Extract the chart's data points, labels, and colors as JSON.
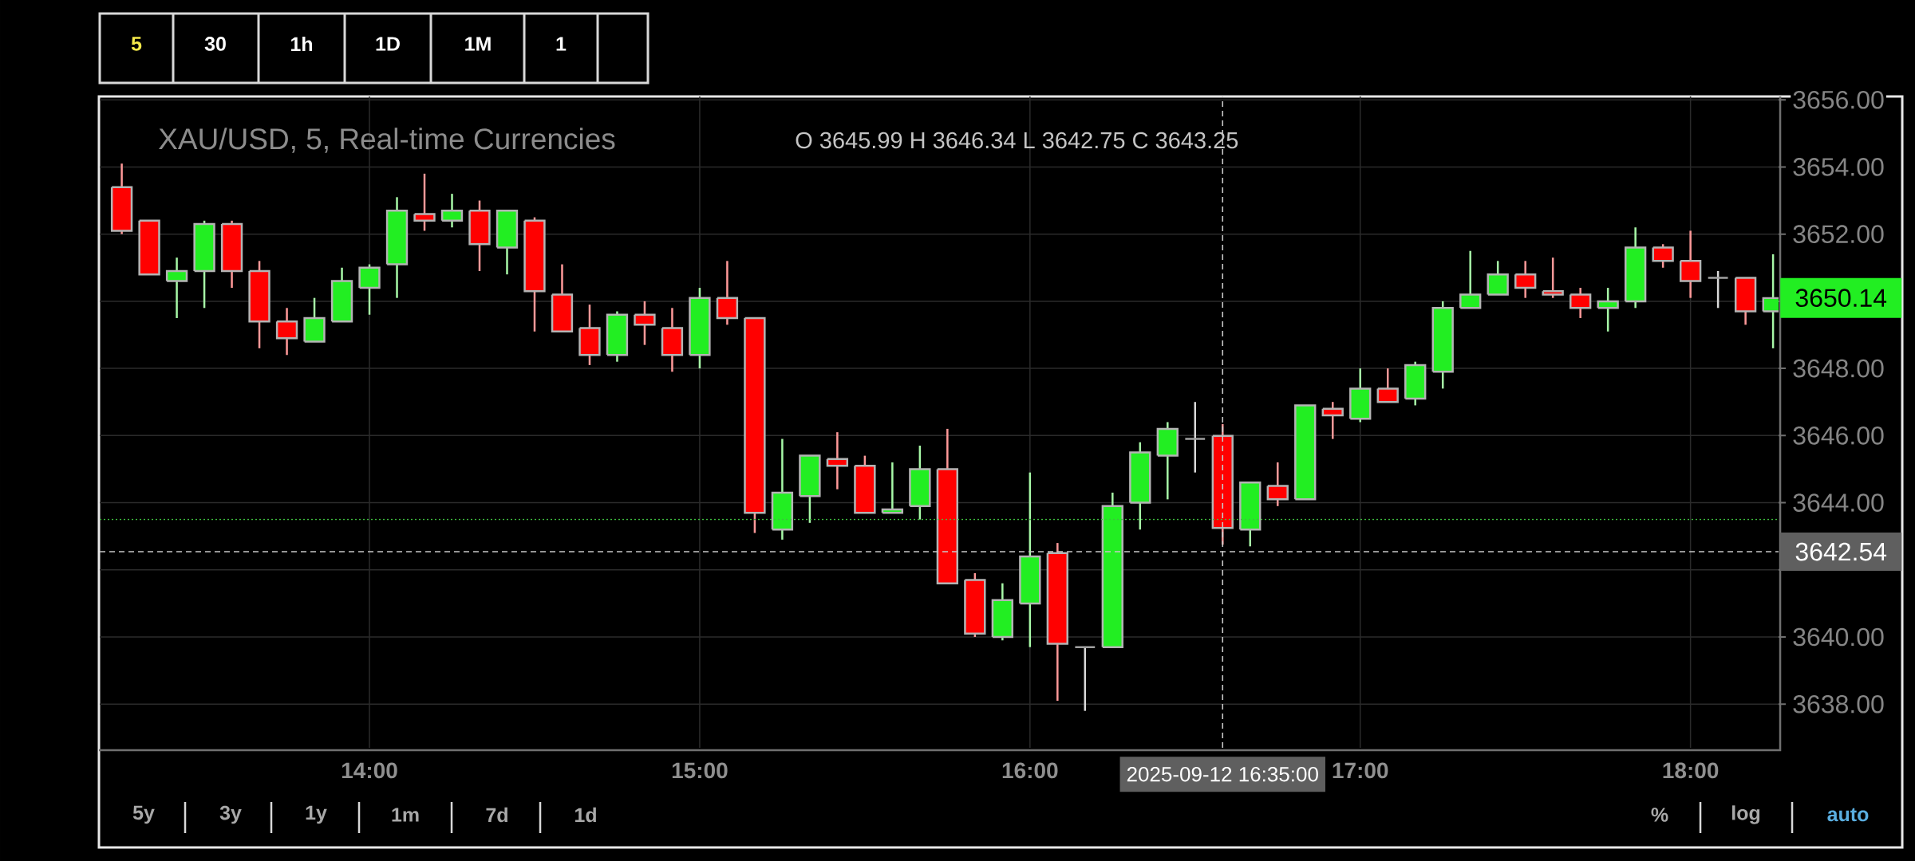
{
  "chart_data": {
    "type": "candlestick",
    "title": "XAU/USD, 5, Real-time Currencies",
    "subtitle": "O 3645.99 H 3646.34 L 3642.75 C 3643.25",
    "x": [
      "2025-09-12T13:15",
      "2025-09-12T13:20",
      "2025-09-12T13:25",
      "2025-09-12T13:30",
      "2025-09-12T13:35",
      "2025-09-12T13:40",
      "2025-09-12T13:45",
      "2025-09-12T13:50",
      "2025-09-12T13:55",
      "2025-09-12T14:00",
      "2025-09-12T14:05",
      "2025-09-12T14:10",
      "2025-09-12T14:15",
      "2025-09-12T14:20",
      "2025-09-12T14:25",
      "2025-09-12T14:30",
      "2025-09-12T14:35",
      "2025-09-12T14:40",
      "2025-09-12T14:45",
      "2025-09-12T14:50",
      "2025-09-12T14:55",
      "2025-09-12T15:00",
      "2025-09-12T15:05",
      "2025-09-12T15:10",
      "2025-09-12T15:15",
      "2025-09-12T15:20",
      "2025-09-12T15:25",
      "2025-09-12T15:30",
      "2025-09-12T15:35",
      "2025-09-12T15:40",
      "2025-09-12T15:45",
      "2025-09-12T15:50",
      "2025-09-12T15:55",
      "2025-09-12T16:00",
      "2025-09-12T16:05",
      "2025-09-12T16:10",
      "2025-09-12T16:15",
      "2025-09-12T16:20",
      "2025-09-12T16:25",
      "2025-09-12T16:30",
      "2025-09-12T16:35",
      "2025-09-12T16:40",
      "2025-09-12T16:45",
      "2025-09-12T16:50",
      "2025-09-12T16:55",
      "2025-09-12T17:00",
      "2025-09-12T17:05",
      "2025-09-12T17:10",
      "2025-09-12T17:15",
      "2025-09-12T17:20",
      "2025-09-12T17:25",
      "2025-09-12T17:30",
      "2025-09-12T17:35",
      "2025-09-12T17:40",
      "2025-09-12T17:45",
      "2025-09-12T17:50",
      "2025-09-12T17:55",
      "2025-09-12T18:00",
      "2025-09-12T18:05",
      "2025-09-12T18:10",
      "2025-09-12T18:15"
    ],
    "ohlc": [
      [
        3653.4,
        3654.1,
        3652.0,
        3652.1
      ],
      [
        3652.4,
        3652.4,
        3650.8,
        3650.8
      ],
      [
        3650.6,
        3651.3,
        3649.5,
        3650.9
      ],
      [
        3650.9,
        3652.4,
        3649.8,
        3652.3
      ],
      [
        3652.3,
        3652.4,
        3650.4,
        3650.9
      ],
      [
        3650.9,
        3651.2,
        3648.6,
        3649.4
      ],
      [
        3649.4,
        3649.8,
        3648.4,
        3648.9
      ],
      [
        3648.8,
        3650.1,
        3648.8,
        3649.5
      ],
      [
        3649.4,
        3651.0,
        3649.4,
        3650.6
      ],
      [
        3650.4,
        3651.1,
        3649.6,
        3651.0
      ],
      [
        3651.1,
        3653.1,
        3650.1,
        3652.7
      ],
      [
        3652.6,
        3653.8,
        3652.1,
        3652.4
      ],
      [
        3652.4,
        3653.2,
        3652.2,
        3652.7
      ],
      [
        3652.7,
        3653.0,
        3650.9,
        3651.7
      ],
      [
        3651.6,
        3652.7,
        3650.8,
        3652.7
      ],
      [
        3652.4,
        3652.5,
        3649.1,
        3650.3
      ],
      [
        3650.2,
        3651.1,
        3649.1,
        3649.1
      ],
      [
        3649.2,
        3649.9,
        3648.1,
        3648.4
      ],
      [
        3648.4,
        3649.7,
        3648.2,
        3649.6
      ],
      [
        3649.6,
        3650.0,
        3648.7,
        3649.3
      ],
      [
        3649.2,
        3649.8,
        3647.9,
        3648.4
      ],
      [
        3648.4,
        3650.4,
        3648.0,
        3650.1
      ],
      [
        3650.1,
        3651.2,
        3649.3,
        3649.5
      ],
      [
        3649.5,
        3649.5,
        3643.1,
        3643.7
      ],
      [
        3643.2,
        3645.9,
        3642.9,
        3644.3
      ],
      [
        3644.2,
        3645.4,
        3643.4,
        3645.4
      ],
      [
        3645.3,
        3646.1,
        3644.4,
        3645.1
      ],
      [
        3645.1,
        3645.4,
        3643.7,
        3643.7
      ],
      [
        3643.7,
        3645.2,
        3643.7,
        3643.8
      ],
      [
        3643.9,
        3645.7,
        3643.5,
        3645.0
      ],
      [
        3645.0,
        3646.2,
        3641.6,
        3641.6
      ],
      [
        3641.7,
        3641.9,
        3640.0,
        3640.1
      ],
      [
        3640.0,
        3641.6,
        3639.9,
        3641.1
      ],
      [
        3641.0,
        3644.9,
        3639.7,
        3642.4
      ],
      [
        3642.5,
        3642.8,
        3638.1,
        3639.8
      ],
      [
        3639.7,
        3639.7,
        3637.8,
        3639.7
      ],
      [
        3639.7,
        3644.3,
        3639.7,
        3643.9
      ],
      [
        3644.0,
        3645.8,
        3643.2,
        3645.5
      ],
      [
        3645.4,
        3646.4,
        3644.1,
        3646.2
      ],
      [
        3645.9,
        3647.0,
        3644.9,
        3645.9
      ],
      [
        3645.99,
        3646.34,
        3642.75,
        3643.25
      ],
      [
        3643.2,
        3644.6,
        3642.7,
        3644.6
      ],
      [
        3644.5,
        3645.2,
        3643.9,
        3644.1
      ],
      [
        3644.1,
        3646.9,
        3644.1,
        3646.9
      ],
      [
        3646.8,
        3647.0,
        3645.9,
        3646.6
      ],
      [
        3646.5,
        3648.0,
        3646.4,
        3647.4
      ],
      [
        3647.4,
        3648.0,
        3647.0,
        3647.0
      ],
      [
        3647.1,
        3648.2,
        3646.9,
        3648.1
      ],
      [
        3647.9,
        3650.0,
        3647.4,
        3649.8
      ],
      [
        3649.8,
        3651.5,
        3649.8,
        3650.2
      ],
      [
        3650.2,
        3651.2,
        3650.2,
        3650.8
      ],
      [
        3650.8,
        3651.2,
        3650.1,
        3650.4
      ],
      [
        3650.3,
        3651.3,
        3650.1,
        3650.2
      ],
      [
        3650.2,
        3650.4,
        3649.5,
        3649.8
      ],
      [
        3649.8,
        3650.4,
        3649.1,
        3650.0
      ],
      [
        3650.0,
        3652.2,
        3649.8,
        3651.6
      ],
      [
        3651.6,
        3651.7,
        3651.0,
        3651.2
      ],
      [
        3651.2,
        3652.1,
        3650.1,
        3650.6
      ],
      [
        3650.7,
        3650.9,
        3649.8,
        3650.7
      ],
      [
        3650.7,
        3650.7,
        3649.3,
        3649.7
      ],
      [
        3649.7,
        3651.4,
        3648.6,
        3650.1
      ]
    ],
    "colors": [
      "#ff0000",
      "#ff0000",
      "#22ee22",
      "#22ee22",
      "#ff0000",
      "#ff0000",
      "#ff0000",
      "#22ee22",
      "#22ee22",
      "#22ee22",
      "#22ee22",
      "#ff0000",
      "#22ee22",
      "#ff0000",
      "#22ee22",
      "#ff0000",
      "#ff0000",
      "#ff0000",
      "#22ee22",
      "#ff0000",
      "#ff0000",
      "#22ee22",
      "#ff0000",
      "#ff0000",
      "#22ee22",
      "#22ee22",
      "#ff0000",
      "#ff0000",
      "#22ee22",
      "#22ee22",
      "#ff0000",
      "#ff0000",
      "#22ee22",
      "#22ee22",
      "#ff0000",
      "#a0a0a0",
      "#22ee22",
      "#22ee22",
      "#22ee22",
      "#a0a0a0",
      "#ff0000",
      "#22ee22",
      "#ff0000",
      "#22ee22",
      "#ff0000",
      "#22ee22",
      "#ff0000",
      "#22ee22",
      "#22ee22",
      "#22ee22",
      "#22ee22",
      "#ff0000",
      "#ff0000",
      "#ff0000",
      "#22ee22",
      "#22ee22",
      "#ff0000",
      "#ff0000",
      "#a0a0a0",
      "#ff0000",
      "#22ee22"
    ],
    "xlim": [
      "2025-09-12T13:11",
      "2025-09-12T18:16"
    ],
    "xticks": [
      {
        "value": "2025-09-12T14:00",
        "label": "14:00"
      },
      {
        "value": "2025-09-12T15:00",
        "label": "15:00"
      },
      {
        "value": "2025-09-12T16:00",
        "label": "16:00"
      },
      {
        "value": "2025-09-12T17:00",
        "label": "17:00"
      },
      {
        "value": "2025-09-12T18:00",
        "label": "18:00"
      }
    ],
    "ylim": [
      3636.7,
      3656.1
    ],
    "yticks": [
      {
        "value": 3638,
        "label": "3638.00"
      },
      {
        "value": 3640,
        "label": "3640.00"
      },
      {
        "value": 3642,
        "label": null
      },
      {
        "value": 3644,
        "label": "3644.00"
      },
      {
        "value": 3646,
        "label": "3646.00"
      },
      {
        "value": 3648,
        "label": "3648.00"
      },
      {
        "value": 3650,
        "label": null
      },
      {
        "value": 3652,
        "label": "3652.00"
      },
      {
        "value": 3654,
        "label": "3654.00"
      },
      {
        "value": 3656,
        "label": "3656.00"
      }
    ],
    "grid": true,
    "ref_lines": [
      {
        "axis": "y",
        "value": 3643.5,
        "color": "#3fbf3f",
        "line_style": "dotted"
      },
      {
        "axis": "y",
        "value": 3642.54,
        "label": "3642.54",
        "color": "#c8c8c8",
        "line_style": "dashed"
      },
      {
        "axis": "x",
        "value": "2025-09-12T16:35",
        "label": "2025-09-12 16:35:00",
        "color": "#c8c8c8",
        "line_style": "dashed"
      }
    ],
    "annotations": [
      "5",
      "30",
      "1h",
      "1D",
      "1M",
      "1",
      "5y",
      "3y",
      "1y",
      "1m",
      "7d",
      "1d",
      "%",
      "log",
      "auto",
      "3650.14"
    ]
  }
}
